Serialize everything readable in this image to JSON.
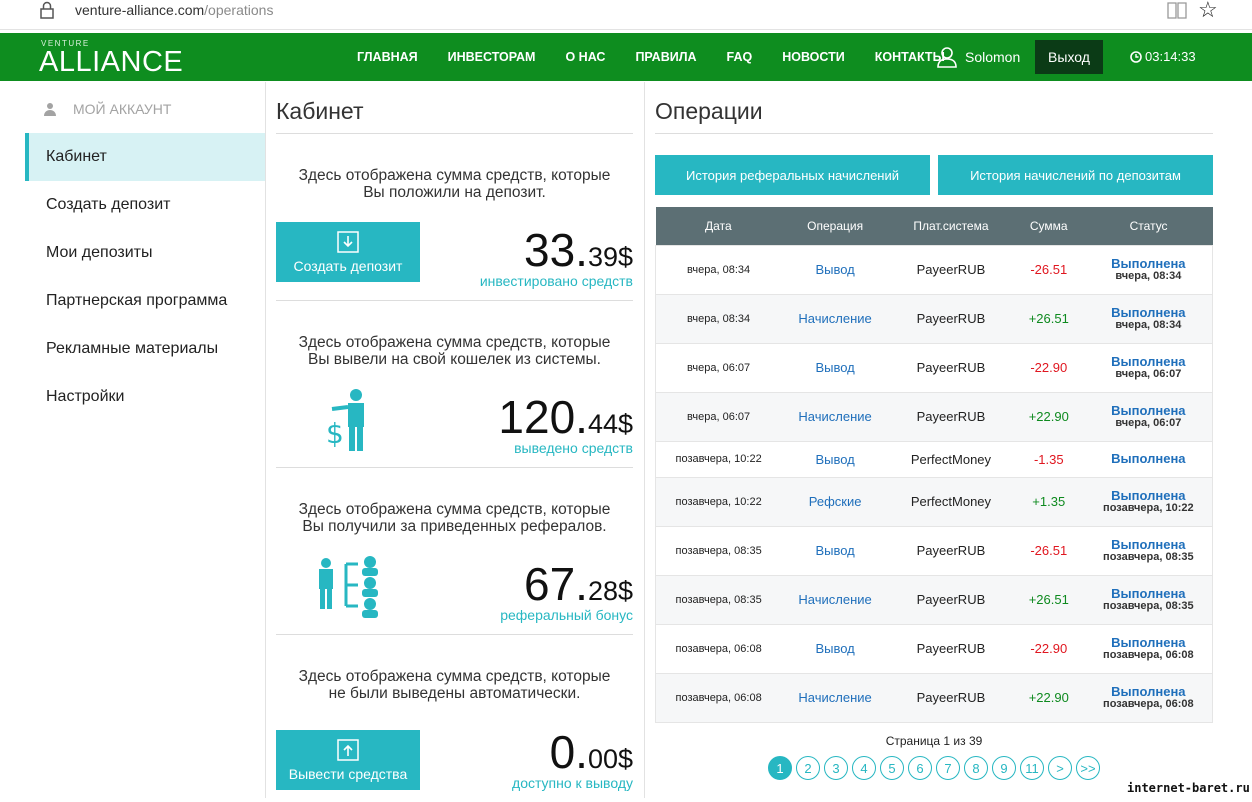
{
  "browser": {
    "url_domain": "venture-alliance.com",
    "url_path": "/operations"
  },
  "header": {
    "logo_small": "VENTURE",
    "logo": "ALLIANCE",
    "nav": [
      "ГЛАВНАЯ",
      "ИНВЕСТОРАМ",
      "О НАС",
      "ПРАВИЛА",
      "FAQ",
      "НОВОСТИ",
      "КОНТАКТЫ"
    ],
    "user": "Solomon",
    "logout": "Выход",
    "clock": "03:14:33"
  },
  "sidebar": {
    "title": "МОЙ АККАУНТ",
    "items": [
      "Кабинет",
      "Создать депозит",
      "Мои депозиты",
      "Партнерская программа",
      "Рекламные материалы",
      "Настройки"
    ],
    "active_index": 0
  },
  "cabinet": {
    "title": "Кабинет",
    "cards": [
      {
        "desc1": "Здесь отображена сумма средств, которые",
        "desc2": "Вы положили на депозит.",
        "button": "Создать депозит",
        "amount_main": "33.",
        "amount_cents": "39$",
        "label": "инвестировано средств"
      },
      {
        "desc1": "Здесь отображена сумма средств, которые",
        "desc2": "Вы вывели на свой кошелек из системы.",
        "amount_main": "120.",
        "amount_cents": "44$",
        "label": "выведено средств"
      },
      {
        "desc1": "Здесь отображена сумма средств, которые",
        "desc2": "Вы получили за приведенных рефералов.",
        "amount_main": "67.",
        "amount_cents": "28$",
        "label": "реферальный бонус"
      },
      {
        "desc1": "Здесь отображена сумма средств, которые",
        "desc2": "не были выведены автоматически.",
        "button": "Вывести средства",
        "amount_main": "0.",
        "amount_cents": "00$",
        "label": "доступно к выводу"
      }
    ]
  },
  "operations": {
    "title": "Операции",
    "tab_referral": "История реферальных начислений",
    "tab_deposits": "История начислений по депозитам",
    "columns": [
      "Дата",
      "Операция",
      "Плат.система",
      "Сумма",
      "Статус"
    ],
    "rows": [
      {
        "date": "вчера, 08:34",
        "op": "Вывод",
        "system": "PayeerRUB",
        "sum": "-26.51",
        "status": "Выполнена",
        "status_date": "вчера, 08:34"
      },
      {
        "date": "вчера, 08:34",
        "op": "Начисление",
        "system": "PayeerRUB",
        "sum": "+26.51",
        "status": "Выполнена",
        "status_date": "вчера, 08:34"
      },
      {
        "date": "вчера, 06:07",
        "op": "Вывод",
        "system": "PayeerRUB",
        "sum": "-22.90",
        "status": "Выполнена",
        "status_date": "вчера, 06:07"
      },
      {
        "date": "вчера, 06:07",
        "op": "Начисление",
        "system": "PayeerRUB",
        "sum": "+22.90",
        "status": "Выполнена",
        "status_date": "вчера, 06:07"
      },
      {
        "date": "позавчера, 10:22",
        "op": "Вывод",
        "system": "PerfectMoney",
        "sum": "-1.35",
        "status": "Выполнена",
        "status_date": ""
      },
      {
        "date": "позавчера, 10:22",
        "op": "Рефские",
        "system": "PerfectMoney",
        "sum": "+1.35",
        "status": "Выполнена",
        "status_date": "позавчера, 10:22"
      },
      {
        "date": "позавчера, 08:35",
        "op": "Вывод",
        "system": "PayeerRUB",
        "sum": "-26.51",
        "status": "Выполнена",
        "status_date": "позавчера, 08:35"
      },
      {
        "date": "позавчера, 08:35",
        "op": "Начисление",
        "system": "PayeerRUB",
        "sum": "+26.51",
        "status": "Выполнена",
        "status_date": "позавчера, 08:35"
      },
      {
        "date": "позавчера, 06:08",
        "op": "Вывод",
        "system": "PayeerRUB",
        "sum": "-22.90",
        "status": "Выполнена",
        "status_date": "позавчера, 06:08"
      },
      {
        "date": "позавчера, 06:08",
        "op": "Начисление",
        "system": "PayeerRUB",
        "sum": "+22.90",
        "status": "Выполнена",
        "status_date": "позавчера, 06:08"
      }
    ],
    "page_info": "Страница 1 из 39",
    "pages": [
      "1",
      "2",
      "3",
      "4",
      "5",
      "6",
      "7",
      "8",
      "9",
      "11",
      ">",
      ">>"
    ],
    "active_page": "1"
  },
  "watermark": "internet-baret.ru",
  "colors": {
    "header_green": "#0e8d1f",
    "accent_teal": "#27b7c2",
    "table_header": "#5c6f74",
    "negative": "#e0161f",
    "positive": "#0e8a1f",
    "link_blue": "#1f6fbb"
  }
}
